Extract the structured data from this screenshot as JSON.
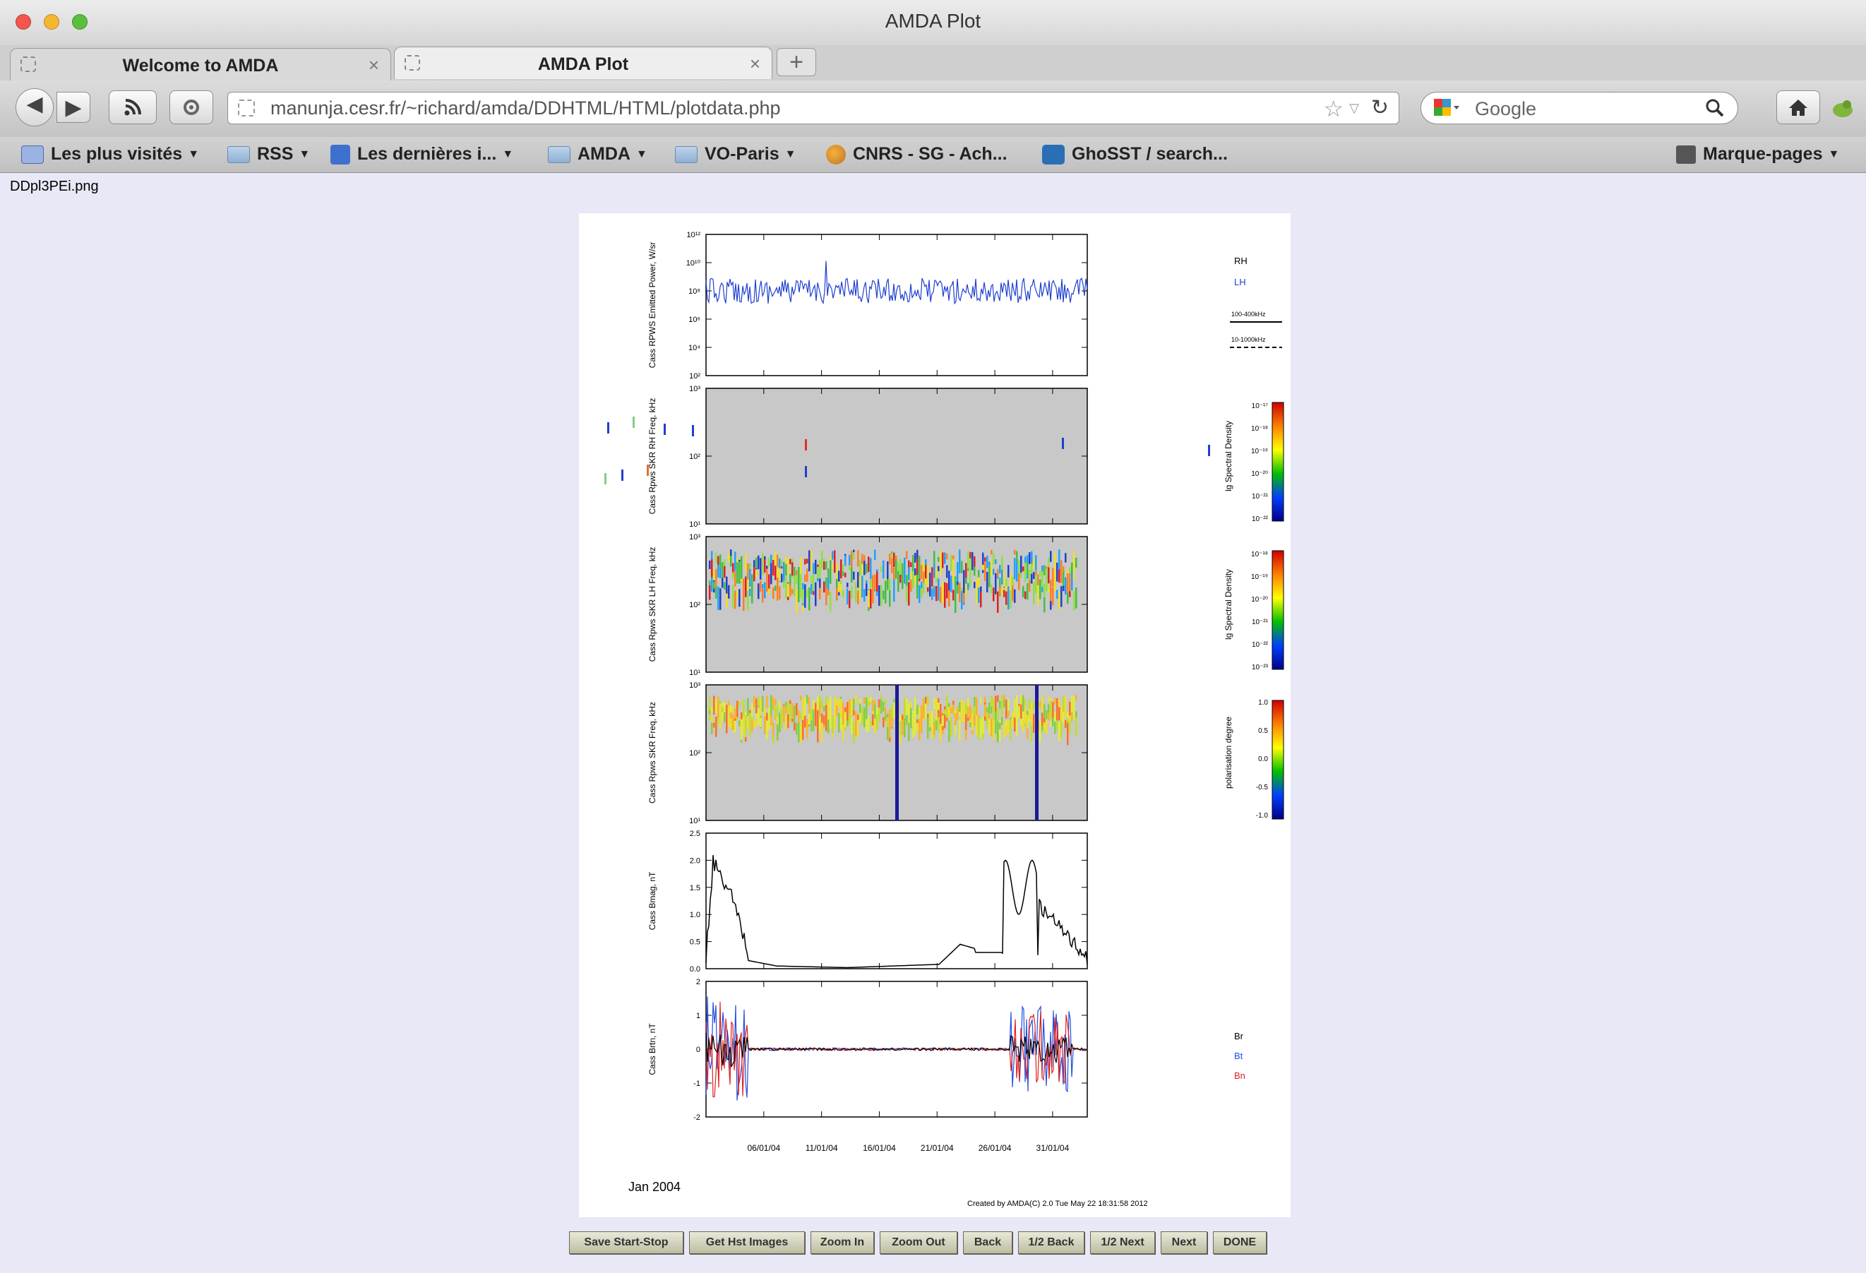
{
  "window": {
    "title": "AMDA Plot"
  },
  "tabs": [
    {
      "label": "Welcome to AMDA"
    },
    {
      "label": "AMDA Plot"
    }
  ],
  "toolbar": {
    "url": "manunja.cesr.fr/~richard/amda/DDHTML/HTML/plotdata.php",
    "search_placeholder": "Google"
  },
  "bookmarks": [
    {
      "label": "Les plus visités"
    },
    {
      "label": "RSS"
    },
    {
      "label": "Les dernières i..."
    },
    {
      "label": "AMDA"
    },
    {
      "label": "VO-Paris"
    },
    {
      "label": "CNRS - SG - Ach..."
    },
    {
      "label": "GhoSST / search..."
    },
    {
      "label": "Marque-pages"
    }
  ],
  "page": {
    "filename": "DDpl3PEi.png"
  },
  "plot": {
    "date_label": "Jan 2004",
    "credit": "Created by AMDA(C)  2.0 Tue May 22 18:31:58 2012",
    "x_ticks": [
      "06/01/04",
      "11/01/04",
      "16/01/04",
      "21/01/04",
      "26/01/04",
      "31/01/04"
    ],
    "panels": [
      {
        "ylabel": "Cass RPWS Emitted Power, W/sr",
        "yticks": [
          "10¹²",
          "10¹⁰",
          "10⁸",
          "10⁶",
          "10⁴",
          "10²"
        ],
        "legend": [
          "RH",
          "LH",
          "100-400kHz",
          "10-1000kHz"
        ]
      },
      {
        "ylabel": "Cass Rpws SKR RH Freq, kHz",
        "yticks": [
          "10³",
          "10²",
          "10¹"
        ],
        "cbar_label": "lg Spectral Density",
        "cbar_ticks": [
          "10⁻¹⁷",
          "10⁻¹⁸",
          "10⁻¹⁹",
          "10⁻²⁰",
          "10⁻²¹",
          "10⁻²²"
        ]
      },
      {
        "ylabel": "Cass Rpws SKR LH Freq, kHz",
        "yticks": [
          "10³",
          "10²",
          "10¹"
        ],
        "cbar_label": "lg Spectral Density",
        "cbar_ticks": [
          "10⁻¹⁸",
          "10⁻¹⁹",
          "10⁻²⁰",
          "10⁻²¹",
          "10⁻²²",
          "10⁻²³"
        ]
      },
      {
        "ylabel": "Cass Rpws SKR Freq, kHz",
        "yticks": [
          "10³",
          "10²",
          "10¹"
        ],
        "cbar_label": "polarisation degree",
        "cbar_ticks": [
          "1.0",
          "0.5",
          "0.0",
          "-0.5",
          "-1.0"
        ]
      },
      {
        "ylabel": "Cass Bmag, nT",
        "yticks": [
          "2.5",
          "2.0",
          "1.5",
          "1.0",
          "0.5",
          "0.0"
        ]
      },
      {
        "ylabel": "Cass Brtn, nT",
        "yticks": [
          "2",
          "1",
          "0",
          "-1",
          "-2"
        ],
        "legend": [
          "Br",
          "Bt",
          "Bn"
        ]
      }
    ]
  },
  "buttons": [
    "Save Start-Stop",
    "Get Hst Images",
    "Zoom In",
    "Zoom Out",
    "Back",
    "1/2 Back",
    "1/2 Next",
    "Next",
    "DONE"
  ],
  "colors": {
    "rh": "#000000",
    "lh": "#1f3fcf",
    "bt": "#2050e0",
    "bn": "#e02020"
  }
}
